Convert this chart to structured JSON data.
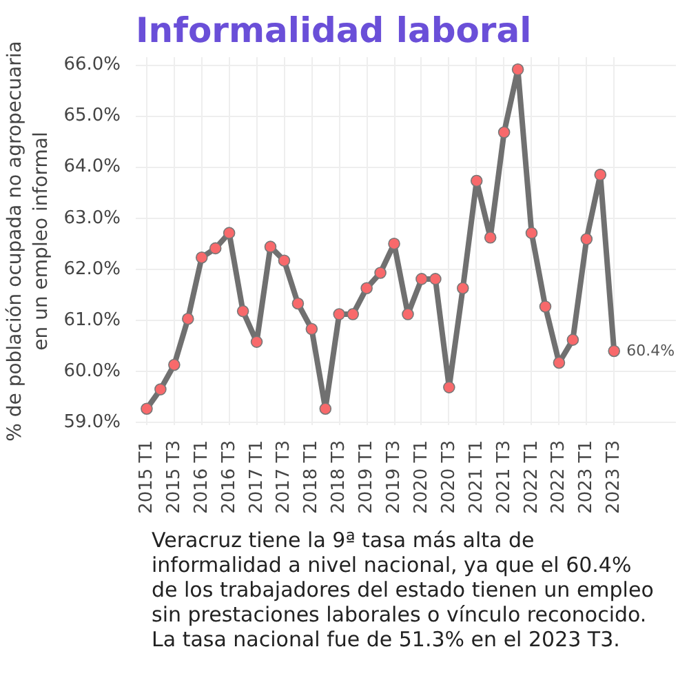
{
  "chart_data": {
    "type": "line",
    "title": "Informalidad laboral",
    "ylabel": "% de población ocupada no agropecuaria\nen un empleo informal",
    "categories": [
      "2015 T1",
      null,
      "2015 T3",
      null,
      "2016 T1",
      null,
      "2016 T3",
      null,
      "2017 T1",
      null,
      "2017 T3",
      null,
      "2018 T1",
      null,
      "2018 T3",
      null,
      "2019 T1",
      null,
      "2019 T3",
      null,
      "2020 T1",
      null,
      "2020 T3",
      null,
      "2021 T1",
      null,
      "2021 T3",
      null,
      "2022 T1",
      null,
      "2022 T3",
      null,
      "2023 T1",
      null,
      "2023 T3"
    ],
    "series": [
      {
        "color": "#707070",
        "values": [
          59.27,
          59.65,
          60.13,
          61.03,
          62.23,
          62.41,
          62.71,
          61.18,
          60.58,
          62.44,
          62.17,
          61.33,
          60.83,
          59.27,
          61.12,
          61.12,
          61.63,
          61.93,
          62.5,
          61.12,
          61.81,
          61.81,
          59.69,
          61.63,
          63.73,
          62.62,
          64.68,
          65.91,
          62.71,
          61.27,
          60.17,
          60.62,
          62.59,
          63.85,
          60.4
        ],
        "value_labels": [
          null,
          null,
          null,
          null,
          null,
          null,
          null,
          null,
          null,
          null,
          null,
          null,
          null,
          null,
          null,
          null,
          null,
          null,
          null,
          null,
          null,
          null,
          null,
          null,
          null,
          null,
          null,
          null,
          null,
          null,
          null,
          null,
          null,
          null,
          "60.4%"
        ]
      }
    ],
    "ylim": [
      58.95,
      66.15
    ],
    "yticks": [
      {
        "value": 59,
        "label": "59.0%"
      },
      {
        "value": 60,
        "label": "60.0%"
      },
      {
        "value": 61,
        "label": "61.0%"
      },
      {
        "value": 62,
        "label": "62.0%"
      },
      {
        "value": 63,
        "label": "63.0%"
      },
      {
        "value": 64,
        "label": "64.0%"
      },
      {
        "value": 65,
        "label": "65.0%"
      },
      {
        "value": 66,
        "label": "66.0%"
      }
    ],
    "grid": true,
    "marker": "circle",
    "line_style": "solid",
    "annotations": [
      "Veracruz tiene la 9ª tasa más alta de informalidad a nivel nacional, ya que el 60.4% de los trabajadores del estado tienen un empleo sin prestaciones laborales o vínculo reconocido. La tasa nacional fue de 51.3% en el 2023 T3."
    ]
  }
}
